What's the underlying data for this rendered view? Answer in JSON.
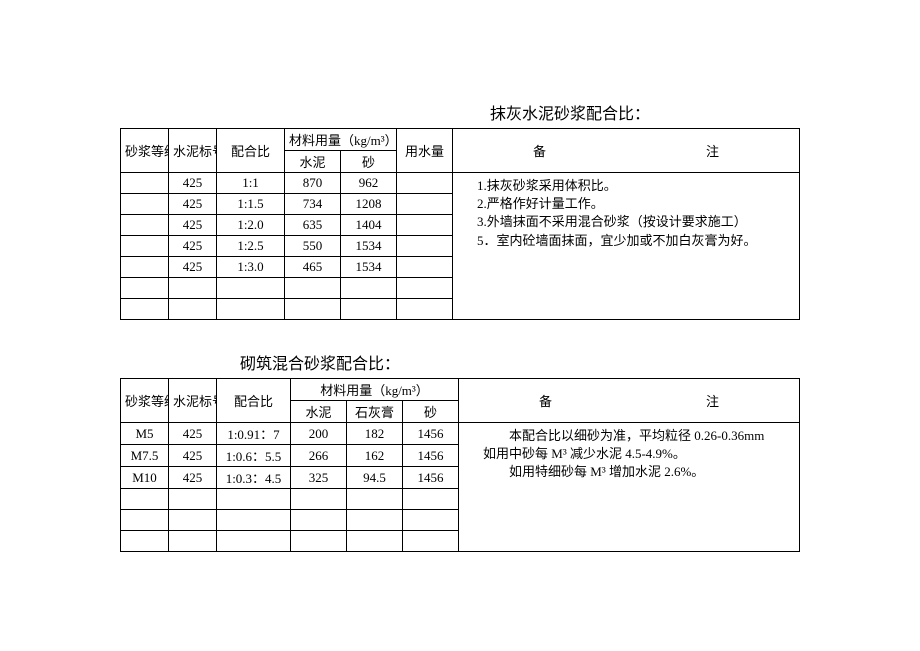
{
  "table1": {
    "title": "抹灰水泥砂浆配合比：",
    "headers": {
      "grade": "砂浆等级",
      "cementMark": "水泥标号",
      "ratio": "配合比",
      "materialUsage": "材料用量（kg/m³）",
      "cement": "水泥",
      "sand": "砂",
      "water": "用水量",
      "notes": "备",
      "notes2": "注"
    },
    "rows": [
      {
        "grade": "",
        "mark": "425",
        "ratio": "1:1",
        "cement": "870",
        "sand": "962",
        "water": ""
      },
      {
        "grade": "",
        "mark": "425",
        "ratio": "1:1.5",
        "cement": "734",
        "sand": "1208",
        "water": ""
      },
      {
        "grade": "",
        "mark": "425",
        "ratio": "1:2.0",
        "cement": "635",
        "sand": "1404",
        "water": ""
      },
      {
        "grade": "",
        "mark": "425",
        "ratio": "1:2.5",
        "cement": "550",
        "sand": "1534",
        "water": ""
      },
      {
        "grade": "",
        "mark": "425",
        "ratio": "1:3.0",
        "cement": "465",
        "sand": "1534",
        "water": ""
      }
    ],
    "notes": [
      "1.抹灰砂浆采用体积比。",
      "2.严格作好计量工作。",
      "3.外墙抹面不采用混合砂浆（按设计要求施工）",
      "5．室内砼墙面抹面，宜少加或不加白灰膏为好。"
    ]
  },
  "table2": {
    "title": "砌筑混合砂浆配合比：",
    "headers": {
      "grade": "砂浆等级",
      "cementMark": "水泥标号",
      "ratio": "配合比",
      "materialUsage": "材料用量（kg/m³）",
      "cement": "水泥",
      "lime": "石灰膏",
      "sand": "砂",
      "notes": "备",
      "notes2": "注"
    },
    "rows": [
      {
        "grade": "M5",
        "mark": "425",
        "ratio": "1:0.91：7",
        "cement": "200",
        "lime": "182",
        "sand": "1456"
      },
      {
        "grade": "M7.5",
        "mark": "425",
        "ratio": "1:0.6：5.5",
        "cement": "266",
        "lime": "162",
        "sand": "1456"
      },
      {
        "grade": "M10",
        "mark": "425",
        "ratio": "1:0.3：4.5",
        "cement": "325",
        "lime": "94.5",
        "sand": "1456"
      }
    ],
    "notes": [
      "　　本配合比以细砂为准，平均粒径 0.26-0.36mm",
      "如用中砂每 M³ 减少水泥 4.5-4.9%。",
      "　　如用特细砂每 M³ 增加水泥 2.6%。"
    ]
  }
}
